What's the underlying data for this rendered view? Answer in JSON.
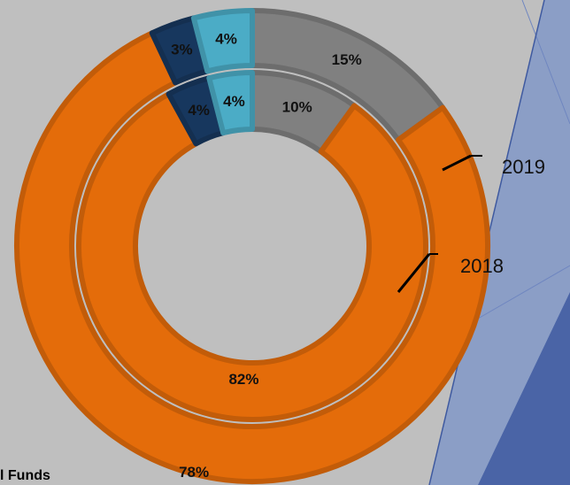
{
  "chart_data": {
    "type": "doughnut",
    "colors": [
      "#808080",
      "#e46c0a",
      "#17375e",
      "#4bacc6"
    ],
    "series": [
      {
        "name": "2019",
        "values": [
          15,
          78,
          3,
          4
        ],
        "value_labels": [
          "15%",
          "78%",
          "3%",
          "4%"
        ]
      },
      {
        "name": "2018",
        "values": [
          10,
          82,
          4,
          4
        ],
        "value_labels": [
          "10%",
          "82%",
          "4%",
          "4%"
        ]
      }
    ],
    "legend_text": "l Funds"
  }
}
